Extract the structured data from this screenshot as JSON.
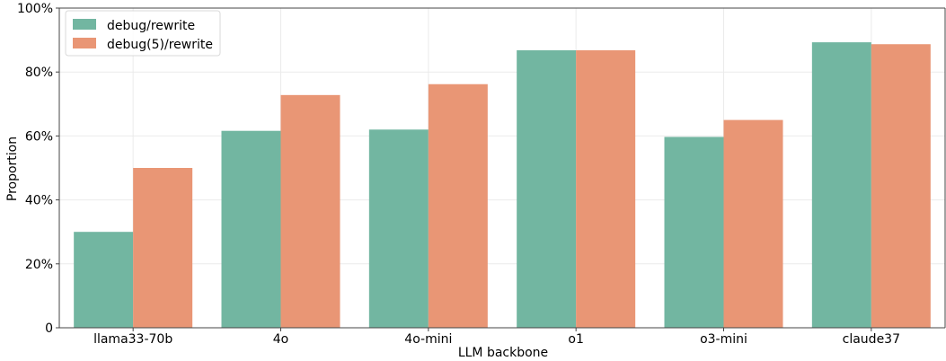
{
  "chart_data": {
    "type": "bar",
    "title": "",
    "xlabel": "LLM backbone",
    "ylabel": "Proportion",
    "categories": [
      "llama33-70b",
      "4o",
      "4o-mini",
      "o1",
      "o3-mini",
      "claude37"
    ],
    "series": [
      {
        "name": "debug/rewrite",
        "color": "#72b6a1",
        "values": [
          30.0,
          61.6,
          62.0,
          86.8,
          59.7,
          89.3
        ]
      },
      {
        "name": "debug(5)/rewrite",
        "color": "#e99675",
        "values": [
          50.0,
          72.8,
          76.2,
          86.8,
          65.0,
          88.7
        ]
      }
    ],
    "ylim": [
      0,
      100
    ],
    "yticks": [
      0,
      20,
      40,
      60,
      80,
      100
    ],
    "ytick_labels": [
      "0",
      "20%",
      "40%",
      "60%",
      "80%",
      "100%"
    ],
    "grid": true,
    "legend_position": "top-left"
  }
}
